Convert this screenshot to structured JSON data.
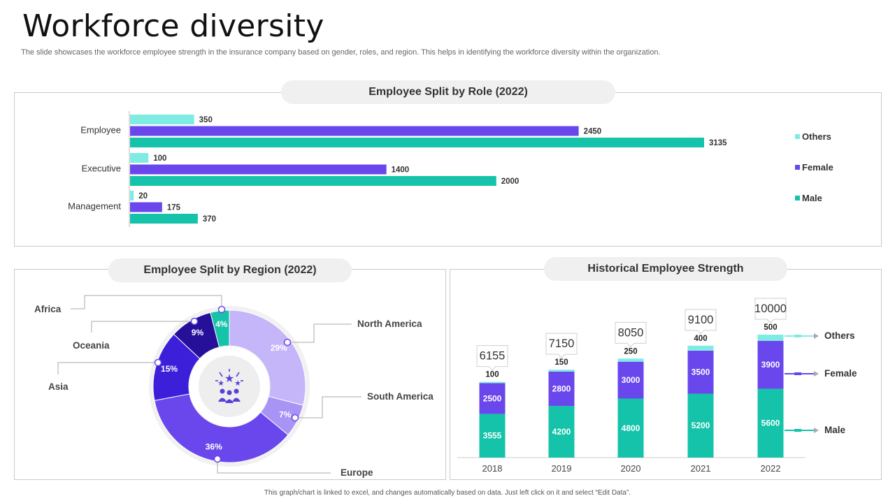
{
  "page": {
    "title": "Workforce diversity",
    "subtitle": "The slide showcases the workforce employee strength in the insurance company based on gender, roles, and region. This helps in identifying the workforce diversity within the organization.",
    "footer": "This graph/chart is linked to excel, and changes automatically based on data. Just left click on it and select “Edit Data”."
  },
  "colors": {
    "others": "#7FECE4",
    "female": "#6A47EC",
    "male": "#14C3A9"
  },
  "chart_data": [
    {
      "type": "bar",
      "orientation": "horizontal",
      "title": "Employee Split by Role (2022)",
      "categories": [
        "Employee",
        "Executive",
        "Management"
      ],
      "series": [
        {
          "name": "Others",
          "values": [
            350,
            100,
            20
          ]
        },
        {
          "name": "Female",
          "values": [
            2450,
            1400,
            175
          ]
        },
        {
          "name": "Male",
          "values": [
            3135,
            2000,
            370
          ]
        }
      ],
      "legend": [
        "Others",
        "Female",
        "Male"
      ],
      "xlim": [
        0,
        3600
      ]
    },
    {
      "type": "pie",
      "variant": "donut",
      "title": "Employee Split by Region (2022)",
      "slices": [
        {
          "label": "North America",
          "value": 29,
          "display": "29%",
          "color": "#C4B6F8"
        },
        {
          "label": "South America",
          "value": 7,
          "display": "7%",
          "color": "#A894F4"
        },
        {
          "label": "Europe",
          "value": 36,
          "display": "36%",
          "color": "#6A47EC"
        },
        {
          "label": "Asia",
          "value": 15,
          "display": "15%",
          "color": "#3C1FD8"
        },
        {
          "label": "Oceania",
          "value": 9,
          "display": "9%",
          "color": "#260F99"
        },
        {
          "label": "Africa",
          "value": 4,
          "display": "4%",
          "color": "#14C3A9"
        }
      ]
    },
    {
      "type": "bar",
      "stacked": true,
      "title": "Historical Employee Strength",
      "categories": [
        "2018",
        "2019",
        "2020",
        "2021",
        "2022"
      ],
      "series": [
        {
          "name": "Male",
          "values": [
            3555,
            4200,
            4800,
            5200,
            5600
          ]
        },
        {
          "name": "Female",
          "values": [
            2500,
            2800,
            3000,
            3500,
            3900
          ]
        },
        {
          "name": "Others",
          "values": [
            100,
            150,
            250,
            400,
            500
          ]
        }
      ],
      "totals": [
        6155,
        7150,
        8050,
        9100,
        10000
      ],
      "legend": [
        "Others",
        "Female",
        "Male"
      ],
      "ylim": [
        0,
        10500
      ]
    }
  ]
}
